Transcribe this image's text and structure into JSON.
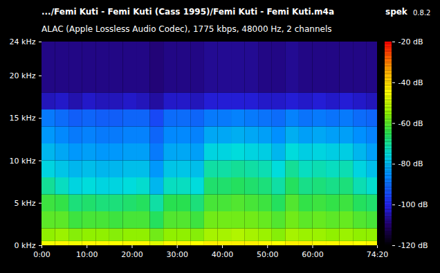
{
  "chart_data": {
    "type": "heatmap",
    "title": ".../Femi Kuti - Femi Kuti (Cass 1995)/Femi Kuti - Femi Kuti.m4a",
    "program": "spek",
    "version": "0.8.2",
    "subtitle": "ALAC (Apple Lossless Audio Codec), 1775 kbps, 48000 Hz, 2 channels",
    "xlim": [
      0,
      74.3333
    ],
    "xticks": [
      {
        "value": 0,
        "label": "0:00"
      },
      {
        "value": 10,
        "label": "10:00"
      },
      {
        "value": 20,
        "label": "20:00"
      },
      {
        "value": 30,
        "label": "30:00"
      },
      {
        "value": 40,
        "label": "40:00"
      },
      {
        "value": 50,
        "label": "50:00"
      },
      {
        "value": 60,
        "label": "60:00"
      },
      {
        "value": 74.3333,
        "label": "74:20"
      }
    ],
    "ylim": [
      0,
      24
    ],
    "yticks": [
      {
        "value": 0,
        "label": "0 kHz"
      },
      {
        "value": 5,
        "label": "5 kHz"
      },
      {
        "value": 10,
        "label": "10 kHz"
      },
      {
        "value": 15,
        "label": "15 kHz"
      },
      {
        "value": 20,
        "label": "20 kHz"
      },
      {
        "value": 24,
        "label": "24 kHz"
      }
    ],
    "x_bins": [
      0,
      3,
      6,
      9,
      12,
      15,
      18,
      21,
      24,
      27,
      30,
      33,
      36,
      39,
      42,
      45,
      48,
      51,
      54,
      57,
      60,
      63,
      66,
      69,
      72,
      74.3333
    ],
    "y_bins": [
      0,
      0.5,
      2,
      4,
      6,
      8,
      10,
      12,
      14,
      16,
      18,
      24
    ],
    "cells": [
      [
        -46,
        -44,
        -46,
        -44,
        -44,
        -45,
        -44,
        -44,
        -48,
        -44,
        -44,
        -45,
        -43,
        -43,
        -43,
        -43,
        -44,
        -45,
        -43,
        -43,
        -44,
        -44,
        -44,
        -45,
        -44
      ],
      [
        -55,
        -54,
        -56,
        -55,
        -55,
        -56,
        -55,
        -55,
        -58,
        -55,
        -55,
        -56,
        -53,
        -53,
        -52,
        -53,
        -54,
        -56,
        -53,
        -54,
        -54,
        -55,
        -54,
        -55,
        -55
      ],
      [
        -60,
        -60,
        -63,
        -62,
        -62,
        -63,
        -62,
        -62,
        -66,
        -61,
        -61,
        -63,
        -58,
        -58,
        -58,
        -58,
        -59,
        -61,
        -58,
        -60,
        -59,
        -60,
        -59,
        -61,
        -62
      ],
      [
        -63,
        -64,
        -68,
        -67,
        -68,
        -68,
        -67,
        -66,
        -71,
        -65,
        -65,
        -68,
        -62,
        -62,
        -61,
        -62,
        -63,
        -66,
        -61,
        -64,
        -63,
        -64,
        -63,
        -66,
        -67
      ],
      [
        -70,
        -73,
        -76,
        -75,
        -76,
        -76,
        -75,
        -74,
        -80,
        -73,
        -73,
        -75,
        -67,
        -67,
        -66,
        -67,
        -68,
        -71,
        -66,
        -69,
        -68,
        -69,
        -68,
        -72,
        -74
      ],
      [
        -76,
        -78,
        -80,
        -79,
        -80,
        -80,
        -79,
        -79,
        -84,
        -78,
        -78,
        -79,
        -71,
        -71,
        -70,
        -71,
        -72,
        -75,
        -70,
        -73,
        -72,
        -73,
        -72,
        -76,
        -79
      ],
      [
        -80,
        -82,
        -84,
        -83,
        -84,
        -84,
        -83,
        -83,
        -88,
        -82,
        -82,
        -83,
        -76,
        -76,
        -75,
        -76,
        -77,
        -80,
        -75,
        -77,
        -76,
        -77,
        -77,
        -80,
        -83
      ],
      [
        -84,
        -86,
        -88,
        -87,
        -88,
        -88,
        -87,
        -87,
        -91,
        -86,
        -86,
        -87,
        -82,
        -82,
        -81,
        -82,
        -83,
        -85,
        -81,
        -83,
        -82,
        -83,
        -83,
        -85,
        -87
      ],
      [
        -88,
        -90,
        -92,
        -91,
        -92,
        -92,
        -91,
        -91,
        -95,
        -90,
        -90,
        -91,
        -88,
        -88,
        -87,
        -88,
        -89,
        -90,
        -87,
        -89,
        -88,
        -89,
        -88,
        -90,
        -91
      ],
      [
        -104,
        -103,
        -105,
        -103,
        -104,
        -104,
        -103,
        -104,
        -106,
        -103,
        -103,
        -104,
        -102,
        -102,
        -102,
        -102,
        -103,
        -103,
        -102,
        -103,
        -102,
        -103,
        -102,
        -103,
        -104
      ],
      [
        -108,
        -108,
        -108,
        -108,
        -108,
        -108,
        -108,
        -108,
        -109,
        -108,
        -108,
        -108,
        -107,
        -107,
        -107,
        -107,
        -108,
        -108,
        -107,
        -108,
        -108,
        -108,
        -108,
        -108,
        -108
      ]
    ],
    "colorbar": {
      "lim": [
        -120,
        -20
      ],
      "ticks": [
        {
          "value": -20,
          "label": "-20 dB"
        },
        {
          "value": -40,
          "label": "-40 dB"
        },
        {
          "value": -60,
          "label": "-60 dB"
        },
        {
          "value": -80,
          "label": "-80 dB"
        },
        {
          "value": -100,
          "label": "-100 dB"
        },
        {
          "value": -120,
          "label": "-120 dB"
        }
      ]
    }
  }
}
